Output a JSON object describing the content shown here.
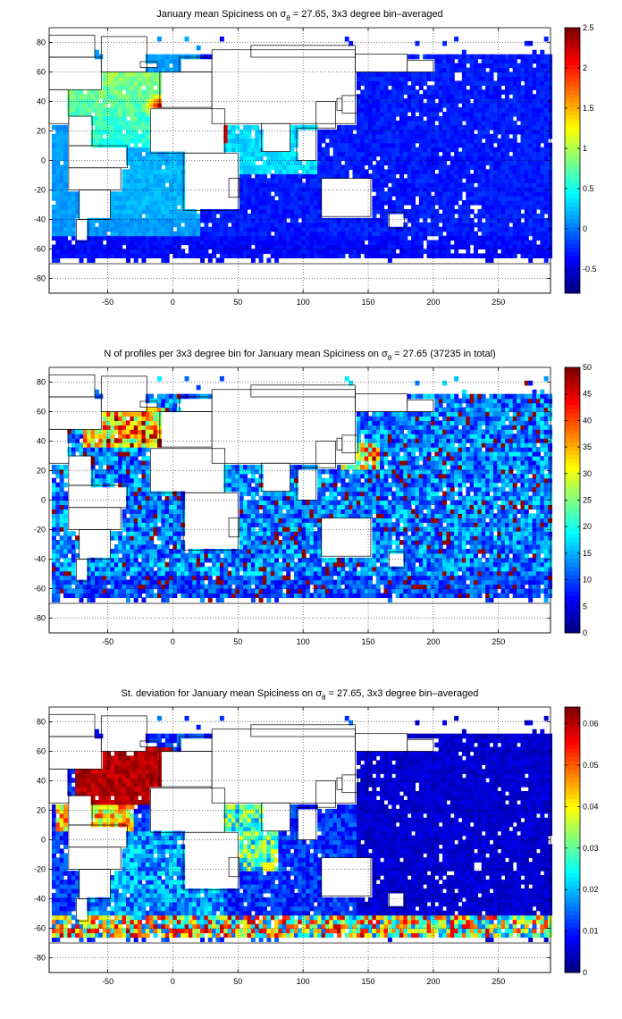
{
  "chart_data": [
    {
      "type": "heatmap",
      "title_pre": "January mean Spiciness on ",
      "title_sym": "σ",
      "title_sub": "θ",
      "title_post": " = 27.65, 3x3 degree bin–averaged",
      "xlim": [
        -95,
        290
      ],
      "ylim": [
        -90,
        90
      ],
      "xticks": [
        "-50",
        "0",
        "50",
        "100",
        "150",
        "200",
        "250"
      ],
      "yticks": [
        "80",
        "60",
        "40",
        "20",
        "0",
        "-20",
        "-40",
        "-60",
        "-80"
      ],
      "colorbar": {
        "min": -0.8,
        "max": 2.5,
        "ticks": [
          "2.5",
          "2",
          "1.5",
          "1",
          "0.5",
          "0",
          "-0.5"
        ]
      },
      "grid": true,
      "colormap": "jet"
    },
    {
      "type": "heatmap",
      "title_pre": "N of profiles per 3x3 degree bin for January mean Spiciness on ",
      "title_sym": "σ",
      "title_sub": "θ",
      "title_post": " = 27.65 (37235 in total)",
      "xlim": [
        -95,
        290
      ],
      "ylim": [
        -90,
        90
      ],
      "xticks": [
        "-50",
        "0",
        "50",
        "100",
        "150",
        "200",
        "250"
      ],
      "yticks": [
        "80",
        "60",
        "40",
        "20",
        "0",
        "-20",
        "-40",
        "-60",
        "-80"
      ],
      "colorbar": {
        "min": 0,
        "max": 50,
        "ticks": [
          "50",
          "45",
          "40",
          "35",
          "30",
          "25",
          "20",
          "15",
          "10",
          "5",
          "0"
        ]
      },
      "grid": true,
      "colormap": "jet"
    },
    {
      "type": "heatmap",
      "title_pre": "St. deviation for January mean Spiciness on ",
      "title_sym": "σ",
      "title_sub": "θ",
      "title_post": " = 27.65, 3x3 degree bin–averaged",
      "xlim": [
        -95,
        290
      ],
      "ylim": [
        -90,
        90
      ],
      "xticks": [
        "-50",
        "0",
        "50",
        "100",
        "150",
        "200",
        "250"
      ],
      "yticks": [
        "80",
        "60",
        "40",
        "20",
        "0",
        "-20",
        "-40",
        "-60",
        "-80"
      ],
      "colorbar": {
        "min": 0,
        "max": 0.064,
        "ticks": [
          "0.06",
          "0.05",
          "0.04",
          "0.03",
          "0.02",
          "0.01",
          "0"
        ]
      },
      "grid": true,
      "colormap": "jet"
    }
  ]
}
